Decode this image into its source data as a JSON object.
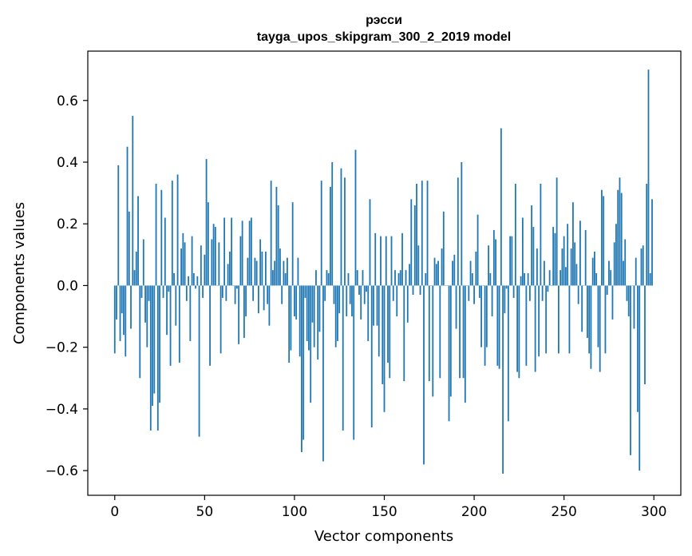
{
  "chart_data": {
    "type": "bar",
    "title": "рэсси",
    "subtitle": "tayga_upos_skipgram_300_2_2019 model",
    "xlabel": "Vector components",
    "ylabel": "Components values",
    "xlim": [
      -15,
      315
    ],
    "ylim": [
      -0.68,
      0.76
    ],
    "xticks": [
      0,
      50,
      100,
      150,
      200,
      250,
      300
    ],
    "xtick_labels": [
      "0",
      "50",
      "100",
      "150",
      "200",
      "250",
      "300"
    ],
    "yticks": [
      -0.6,
      -0.4,
      -0.2,
      0.0,
      0.2,
      0.4,
      0.6
    ],
    "ytick_labels": [
      "−0.6",
      "−0.4",
      "−0.2",
      "0.0",
      "0.2",
      "0.4",
      "0.6"
    ],
    "bar_color": "#1f77b4",
    "grid": false,
    "series": [
      {
        "name": "рэсси",
        "x_start": 0,
        "values": [
          -0.22,
          -0.11,
          0.39,
          -0.18,
          -0.09,
          -0.16,
          -0.23,
          0.45,
          0.24,
          -0.14,
          0.55,
          0.05,
          0.11,
          0.29,
          -0.3,
          -0.04,
          0.15,
          -0.12,
          -0.2,
          -0.05,
          -0.47,
          -0.39,
          -0.35,
          0.33,
          -0.47,
          -0.38,
          0.31,
          -0.04,
          0.22,
          -0.16,
          -0.02,
          -0.26,
          0.34,
          0.04,
          -0.13,
          0.36,
          -0.25,
          0.12,
          0.17,
          0.14,
          -0.05,
          0.03,
          -0.18,
          0.16,
          0.04,
          -0.01,
          0.03,
          -0.49,
          0.13,
          -0.04,
          0.1,
          0.41,
          0.27,
          -0.26,
          0.15,
          0.2,
          0.19,
          0.0,
          0.14,
          -0.22,
          -0.04,
          0.22,
          -0.05,
          0.07,
          0.11,
          0.22,
          0.0,
          -0.06,
          -0.01,
          -0.19,
          0.16,
          0.21,
          -0.17,
          -0.1,
          0.09,
          0.21,
          0.22,
          -0.05,
          0.09,
          0.08,
          -0.09,
          0.15,
          0.11,
          -0.08,
          0.11,
          -0.06,
          -0.13,
          0.34,
          0.05,
          0.08,
          0.32,
          0.26,
          0.12,
          -0.06,
          0.08,
          0.04,
          0.09,
          -0.25,
          -0.21,
          0.27,
          -0.1,
          -0.11,
          0.09,
          -0.23,
          -0.54,
          -0.5,
          -0.04,
          -0.18,
          -0.21,
          -0.38,
          -0.12,
          -0.2,
          0.05,
          -0.24,
          -0.15,
          0.34,
          -0.57,
          -0.05,
          0.05,
          0.04,
          0.32,
          0.4,
          -0.06,
          -0.2,
          -0.18,
          -0.09,
          0.38,
          -0.47,
          0.35,
          -0.1,
          0.04,
          -0.06,
          -0.1,
          -0.5,
          0.44,
          0.05,
          -0.03,
          -0.11,
          0.05,
          -0.06,
          -0.02,
          -0.18,
          0.28,
          -0.46,
          -0.13,
          0.17,
          -0.13,
          -0.23,
          0.16,
          -0.32,
          -0.41,
          0.16,
          -0.25,
          -0.3,
          0.16,
          -0.05,
          0.05,
          -0.1,
          0.04,
          0.05,
          0.17,
          -0.31,
          0.05,
          -0.12,
          0.07,
          0.28,
          -0.03,
          0.26,
          0.33,
          0.13,
          -0.03,
          0.34,
          -0.58,
          0.04,
          0.34,
          -0.31,
          0.0,
          -0.36,
          0.09,
          0.07,
          0.08,
          -0.3,
          0.12,
          0.24,
          0.0,
          0.0,
          -0.44,
          -0.36,
          0.08,
          0.1,
          -0.14,
          0.35,
          -0.3,
          0.4,
          -0.3,
          -0.38,
          0.0,
          -0.05,
          0.08,
          0.04,
          -0.06,
          0.11,
          0.23,
          -0.04,
          -0.2,
          0.0,
          -0.26,
          -0.2,
          0.13,
          0.04,
          -0.1,
          0.18,
          0.15,
          -0.26,
          -0.27,
          0.51,
          -0.61,
          -0.09,
          -0.01,
          -0.44,
          0.16,
          0.16,
          -0.04,
          0.33,
          -0.28,
          -0.3,
          0.03,
          0.22,
          0.04,
          -0.26,
          0.04,
          -0.05,
          0.26,
          0.19,
          -0.28,
          0.12,
          -0.23,
          0.33,
          -0.05,
          0.08,
          -0.22,
          -0.02,
          0.05,
          0.0,
          0.19,
          0.17,
          0.35,
          -0.22,
          0.05,
          0.12,
          0.16,
          0.06,
          0.2,
          -0.22,
          0.12,
          0.27,
          0.14,
          0.07,
          -0.06,
          0.21,
          -0.15,
          0.0,
          0.18,
          -0.17,
          -0.22,
          -0.27,
          0.09,
          0.11,
          0.04,
          -0.2,
          -0.28,
          0.31,
          0.29,
          -0.22,
          -0.03,
          0.08,
          0.05,
          -0.11,
          0.14,
          0.2,
          0.31,
          0.35,
          0.3,
          0.08,
          0.15,
          -0.05,
          -0.1,
          -0.55,
          0.0,
          -0.14,
          0.09,
          -0.41,
          -0.6,
          0.12,
          0.13,
          -0.32,
          0.33,
          0.7,
          0.04,
          0.28
        ]
      }
    ]
  }
}
